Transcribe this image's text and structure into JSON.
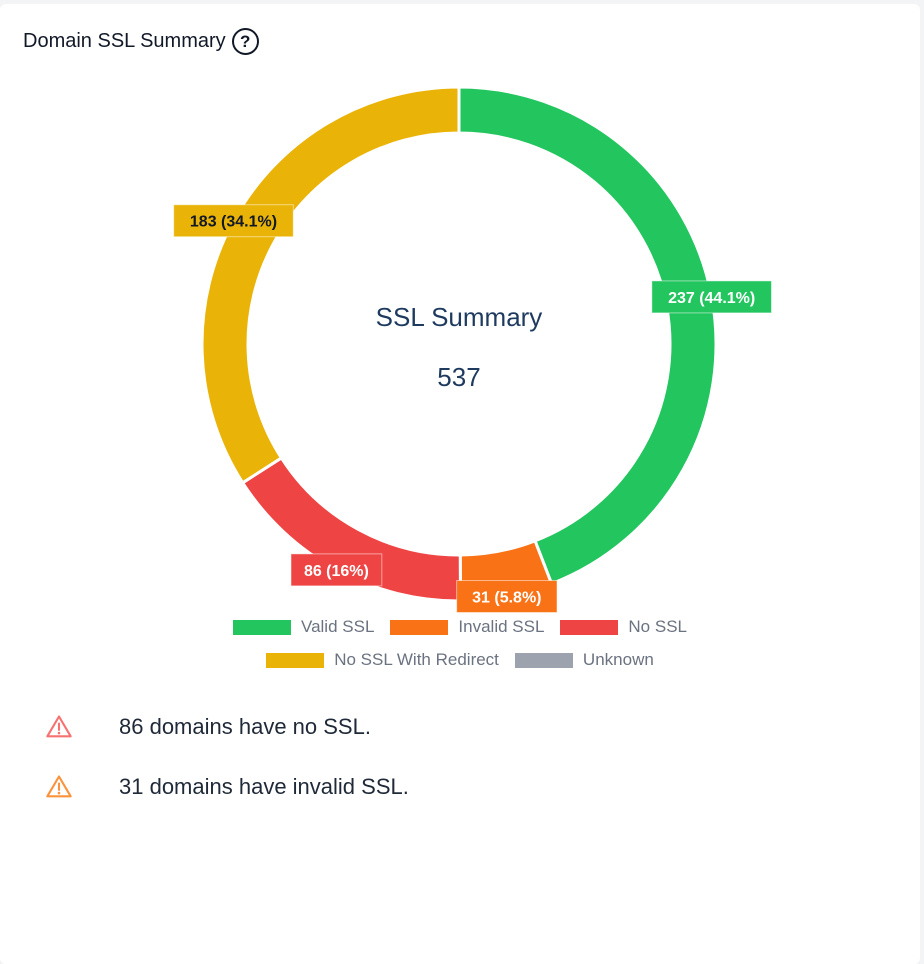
{
  "header": {
    "title": "Domain SSL Summary",
    "help_glyph": "?"
  },
  "chart_data": {
    "type": "donut",
    "center_label": "SSL Summary",
    "center_value": "537",
    "total": 537,
    "slices": [
      {
        "name": "Valid SSL",
        "value": 237,
        "label": "237 (44.1%)",
        "color": "#22c55e"
      },
      {
        "name": "Invalid SSL",
        "value": 31,
        "label": "31 (5.8%)",
        "color": "#f97316"
      },
      {
        "name": "No SSL",
        "value": 86,
        "label": "86 (16%)",
        "color": "#ef4444"
      },
      {
        "name": "No SSL With Redirect",
        "value": 183,
        "label": "183 (34.1%)",
        "color": "#eab308"
      },
      {
        "name": "Unknown",
        "value": 0,
        "label": "",
        "color": "#9ca3af"
      }
    ],
    "legend_placement": "bottom"
  },
  "alerts": [
    {
      "icon": "warning-icon",
      "color": "#f87171",
      "text": "86 domains have no SSL."
    },
    {
      "icon": "warning-icon",
      "color": "#fb923c",
      "text": "31 domains have invalid SSL."
    }
  ]
}
